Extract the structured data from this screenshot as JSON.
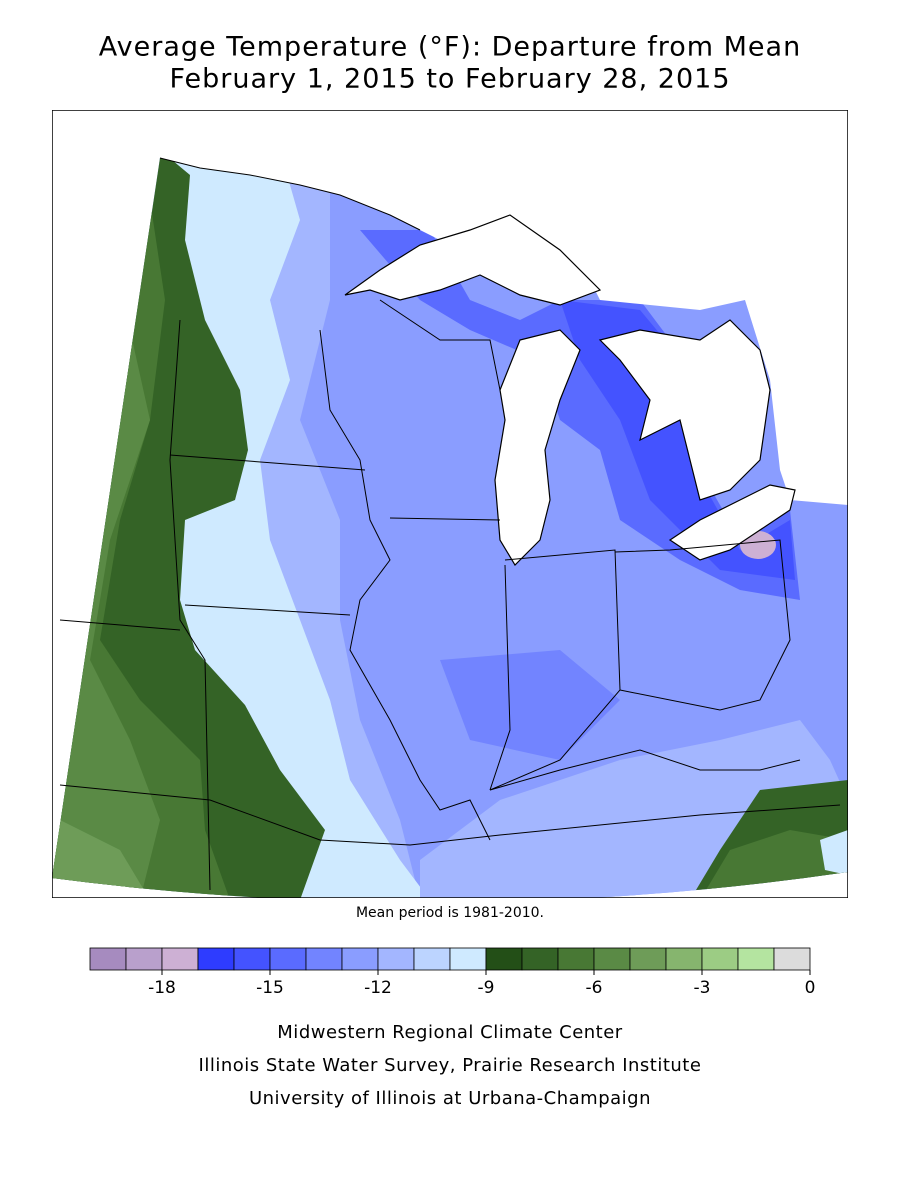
{
  "header": {
    "title": "Average Temperature (°F): Departure from Mean",
    "subtitle": "February 1, 2015 to February 28, 2015"
  },
  "map": {
    "note": "Mean period is 1981-2010."
  },
  "colorbar": {
    "lim": [
      -20,
      0
    ],
    "ticks": [
      -18,
      -15,
      -12,
      -9,
      -6,
      -3,
      0
    ],
    "colors": [
      "#a68bbf",
      "#b9a0cc",
      "#cdb0d4",
      "#2e3cff",
      "#4453ff",
      "#5a6bff",
      "#7284ff",
      "#8a9dff",
      "#a3b6ff",
      "#bcd4ff",
      "#cfeaff",
      "#234f17",
      "#346326",
      "#487834",
      "#5a8a45",
      "#6e9c58",
      "#86b56e",
      "#9ccc84",
      "#b4e4a0",
      "#dcdcdc"
    ]
  },
  "footer": {
    "lines": [
      "Midwestern Regional Climate Center",
      "Illinois State Water Survey, Prairie Research Institute",
      "University of Illinois at Urbana-Champaign"
    ]
  }
}
